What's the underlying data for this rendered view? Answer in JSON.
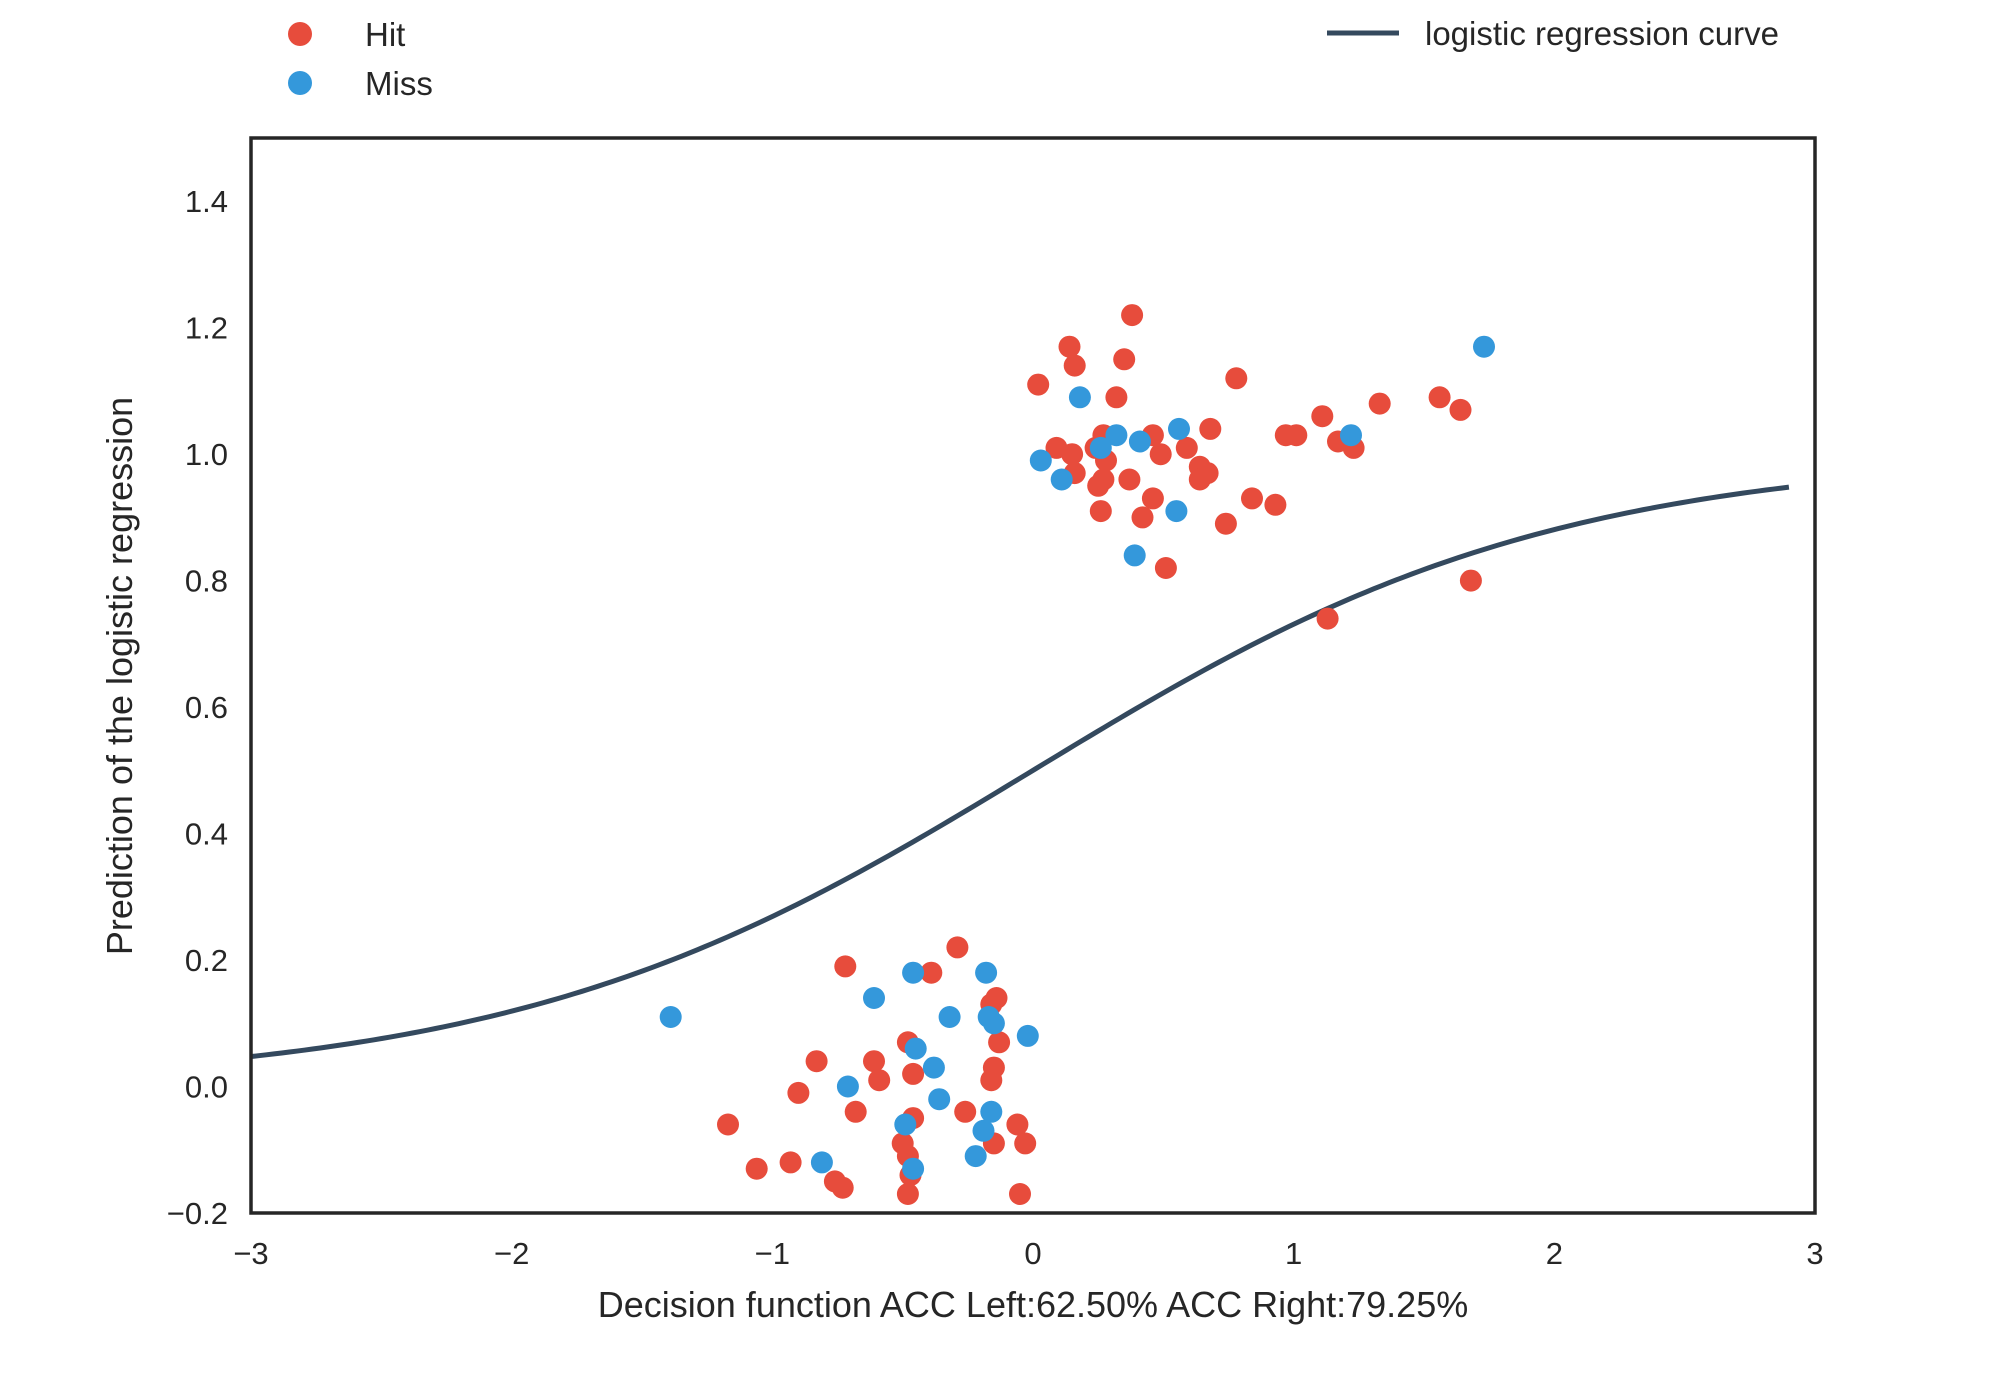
{
  "chart_data": {
    "type": "scatter",
    "title": "",
    "xlabel": "Decision function ACC Left:62.50% ACC Right:79.25%",
    "ylabel": "Prediction of the logistic regression",
    "xlim": [
      -3,
      3
    ],
    "ylim": [
      -0.2,
      1.5
    ],
    "xticks": [
      -3,
      -2,
      -1,
      0,
      1,
      2,
      3
    ],
    "xtick_labels": [
      "−3",
      "−2",
      "−1",
      "0",
      "1",
      "2",
      "3"
    ],
    "yticks": [
      -0.2,
      0.0,
      0.2,
      0.4,
      0.6,
      0.8,
      1.0,
      1.2,
      1.4
    ],
    "ytick_labels": [
      "−0.2",
      "0.0",
      "0.2",
      "0.4",
      "0.6",
      "0.8",
      "1.0",
      "1.2",
      "1.4"
    ],
    "grid": false,
    "legend": [
      {
        "label": "Hit",
        "kind": "marker",
        "color": "#e74c3c"
      },
      {
        "label": "Miss",
        "kind": "marker",
        "color": "#3498db"
      },
      {
        "label": "logistic regression curve",
        "kind": "line",
        "color": "#34495e"
      }
    ],
    "curve": {
      "name": "logistic regression curve",
      "color": "#34495e",
      "x_range": [
        -3,
        2.9
      ],
      "function": "1 / (1 + exp(-1.0 * (x - 0.0)))"
    },
    "series": [
      {
        "name": "Hit",
        "color": "#e74c3c",
        "points": [
          [
            0.38,
            1.22
          ],
          [
            0.14,
            1.17
          ],
          [
            0.16,
            1.14
          ],
          [
            0.35,
            1.15
          ],
          [
            0.02,
            1.11
          ],
          [
            0.32,
            1.09
          ],
          [
            0.78,
            1.12
          ],
          [
            1.33,
            1.08
          ],
          [
            1.56,
            1.09
          ],
          [
            1.64,
            1.07
          ],
          [
            1.11,
            1.06
          ],
          [
            0.97,
            1.03
          ],
          [
            1.01,
            1.03
          ],
          [
            1.17,
            1.02
          ],
          [
            1.23,
            1.01
          ],
          [
            0.68,
            1.04
          ],
          [
            0.46,
            1.03
          ],
          [
            0.59,
            1.01
          ],
          [
            0.49,
            1.0
          ],
          [
            0.27,
            1.03
          ],
          [
            0.24,
            1.01
          ],
          [
            0.09,
            1.01
          ],
          [
            0.15,
            1.0
          ],
          [
            0.28,
            0.99
          ],
          [
            0.16,
            0.97
          ],
          [
            0.64,
            0.98
          ],
          [
            0.67,
            0.97
          ],
          [
            0.64,
            0.96
          ],
          [
            0.37,
            0.96
          ],
          [
            0.25,
            0.95
          ],
          [
            0.27,
            0.96
          ],
          [
            0.46,
            0.93
          ],
          [
            0.84,
            0.93
          ],
          [
            0.93,
            0.92
          ],
          [
            0.26,
            0.91
          ],
          [
            0.42,
            0.9
          ],
          [
            0.74,
            0.89
          ],
          [
            0.51,
            0.82
          ],
          [
            1.68,
            0.8
          ],
          [
            1.13,
            0.74
          ],
          [
            -0.29,
            0.22
          ],
          [
            -0.72,
            0.19
          ],
          [
            -0.39,
            0.18
          ],
          [
            -0.14,
            0.14
          ],
          [
            -0.16,
            0.13
          ],
          [
            -0.48,
            0.07
          ],
          [
            -0.13,
            0.07
          ],
          [
            -0.83,
            0.04
          ],
          [
            -0.61,
            0.04
          ],
          [
            -0.46,
            0.02
          ],
          [
            -0.15,
            0.03
          ],
          [
            -0.59,
            0.01
          ],
          [
            -0.16,
            0.01
          ],
          [
            -0.9,
            -0.01
          ],
          [
            -0.68,
            -0.04
          ],
          [
            -0.26,
            -0.04
          ],
          [
            -0.46,
            -0.05
          ],
          [
            -1.17,
            -0.06
          ],
          [
            -0.06,
            -0.06
          ],
          [
            -0.03,
            -0.09
          ],
          [
            -0.5,
            -0.09
          ],
          [
            -0.48,
            -0.11
          ],
          [
            -0.15,
            -0.09
          ],
          [
            -0.93,
            -0.12
          ],
          [
            -1.06,
            -0.13
          ],
          [
            -0.47,
            -0.14
          ],
          [
            -0.76,
            -0.15
          ],
          [
            -0.73,
            -0.16
          ],
          [
            -0.48,
            -0.17
          ],
          [
            -0.05,
            -0.17
          ]
        ]
      },
      {
        "name": "Miss",
        "color": "#3498db",
        "points": [
          [
            1.73,
            1.17
          ],
          [
            0.18,
            1.09
          ],
          [
            0.32,
            1.03
          ],
          [
            0.56,
            1.04
          ],
          [
            1.22,
            1.03
          ],
          [
            0.41,
            1.02
          ],
          [
            0.26,
            1.01
          ],
          [
            0.03,
            0.99
          ],
          [
            0.11,
            0.96
          ],
          [
            0.55,
            0.91
          ],
          [
            0.39,
            0.84
          ],
          [
            -1.39,
            0.11
          ],
          [
            -0.46,
            0.18
          ],
          [
            -0.18,
            0.18
          ],
          [
            -0.61,
            0.14
          ],
          [
            -0.32,
            0.11
          ],
          [
            -0.17,
            0.11
          ],
          [
            -0.15,
            0.1
          ],
          [
            -0.02,
            0.08
          ],
          [
            -0.45,
            0.06
          ],
          [
            -0.38,
            0.03
          ],
          [
            -0.71,
            0.0
          ],
          [
            -0.36,
            -0.02
          ],
          [
            -0.16,
            -0.04
          ],
          [
            -0.49,
            -0.06
          ],
          [
            -0.19,
            -0.07
          ],
          [
            -0.81,
            -0.12
          ],
          [
            -0.22,
            -0.11
          ],
          [
            -0.46,
            -0.13
          ]
        ]
      }
    ]
  }
}
